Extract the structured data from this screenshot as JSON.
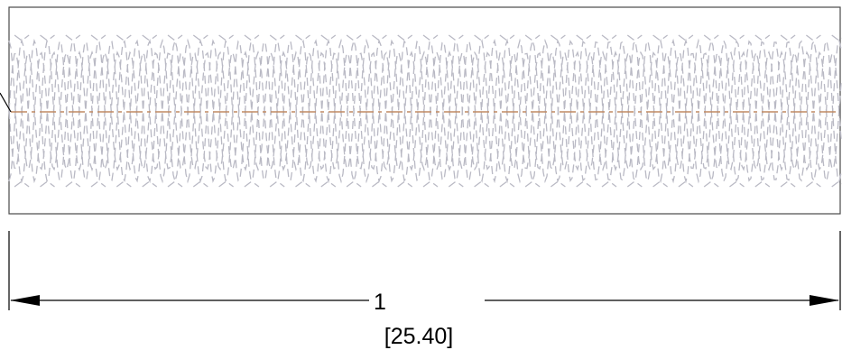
{
  "drawing": {
    "dimension_primary": "1",
    "dimension_secondary": "[25.40]",
    "colors": {
      "outline": "#4a4a4a",
      "hidden_lines": "#b9b9c4",
      "center_line": "#c08a63",
      "dimension": "#000000"
    }
  }
}
